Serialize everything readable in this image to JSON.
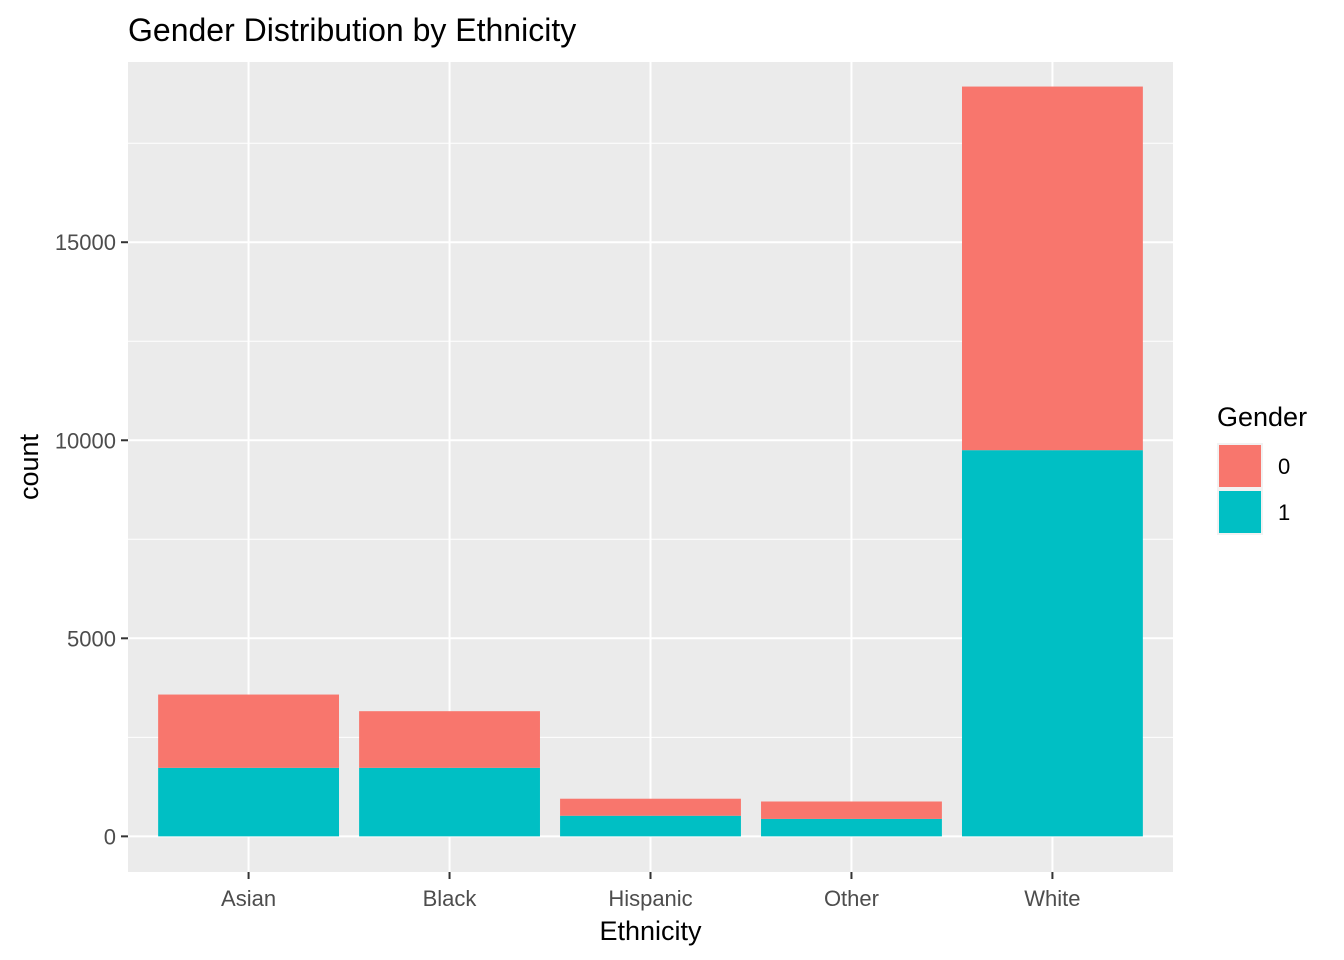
{
  "chart_data": {
    "type": "bar",
    "stacked": true,
    "title": "Gender Distribution by Ethnicity",
    "xlabel": "Ethnicity",
    "ylabel": "count",
    "categories": [
      "Asian",
      "Black",
      "Hispanic",
      "Other",
      "White"
    ],
    "series": [
      {
        "name": "0",
        "color": "#F8766D",
        "values": [
          1850,
          1430,
          430,
          440,
          9180
        ]
      },
      {
        "name": "1",
        "color": "#00BFC4",
        "values": [
          1730,
          1730,
          520,
          440,
          9750
        ]
      }
    ],
    "ylim": [
      -900,
      19550
    ],
    "yticks": [
      0,
      5000,
      10000,
      15000
    ],
    "yticks_minor": [
      2500,
      7500,
      12500,
      17500
    ],
    "grid": true,
    "legend": {
      "title": "Gender",
      "position": "right",
      "order": [
        "0",
        "1"
      ]
    },
    "panel_background": "#EBEBEB",
    "grid_color": "#FFFFFF"
  }
}
